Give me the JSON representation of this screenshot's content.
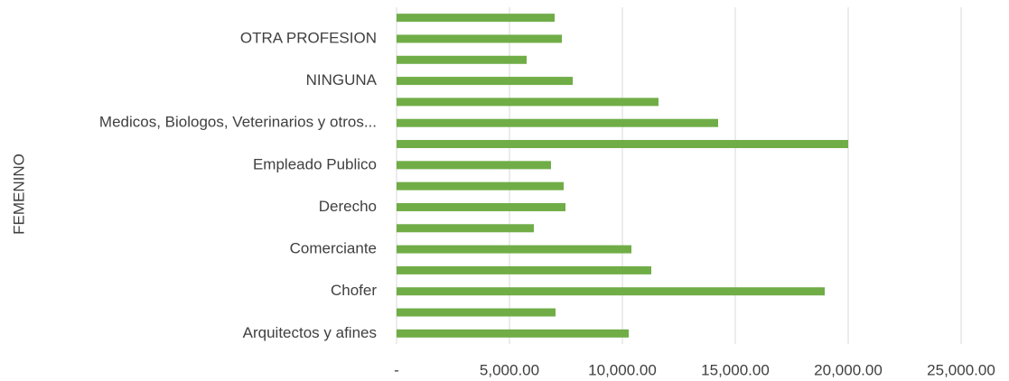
{
  "chart_data": {
    "type": "bar",
    "orientation": "horizontal",
    "y_label": "FEMENINO",
    "categories": [
      null,
      "OTRA PROFESION",
      null,
      "NINGUNA",
      null,
      "Medicos, Biologos, Veterinarios y otros...",
      null,
      "Empleado Publico",
      null,
      "Derecho",
      null,
      "Comerciante",
      null,
      "Chofer",
      null,
      "Arquitectos y afines"
    ],
    "values": [
      7000,
      7320,
      5760,
      7800,
      11600,
      14240,
      20000,
      6840,
      7400,
      7480,
      6080,
      10400,
      11280,
      18960,
      7040,
      10280
    ],
    "color": "#70ad47",
    "xlim": [
      0,
      25000
    ],
    "xticks": [
      {
        "value": 0,
        "label": "-"
      },
      {
        "value": 5000,
        "label": "5,000.00"
      },
      {
        "value": 10000,
        "label": "10,000.00"
      },
      {
        "value": 15000,
        "label": "15,000.00"
      },
      {
        "value": 20000,
        "label": "20,000.00"
      },
      {
        "value": 25000,
        "label": "25,000.00"
      }
    ],
    "grid": true
  }
}
